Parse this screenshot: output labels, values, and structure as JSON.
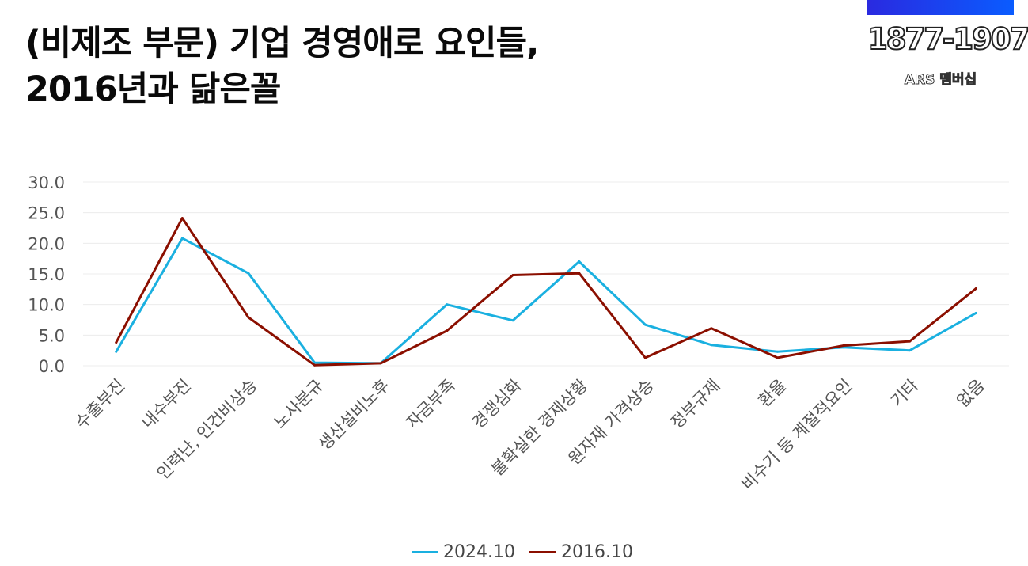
{
  "title": {
    "line1": "(비제조 부문) 기업 경영애로 요인들,",
    "line2": "2016년과 닮은꼴"
  },
  "brand": {
    "phone": "1877-1907",
    "subtitle": "ARS 멤버십"
  },
  "chart_data": {
    "type": "line",
    "categories": [
      "수출부진",
      "내수부진",
      "인력난, 인건비상승",
      "노사분규",
      "생산설비노후",
      "자금부족",
      "경쟁심화",
      "불확실한 경제상황",
      "원자재 가격상승",
      "정부규제",
      "환율",
      "비수기 등 계절적요인",
      "기타",
      "없음"
    ],
    "series": [
      {
        "name": "2024.10",
        "color": "#1ab0e0",
        "values": [
          2.3,
          20.8,
          15.1,
          0.5,
          0.4,
          10.0,
          7.4,
          17.0,
          6.7,
          3.4,
          2.3,
          3.0,
          2.5,
          8.6
        ]
      },
      {
        "name": "2016.10",
        "color": "#8b0f00",
        "values": [
          3.8,
          24.1,
          7.9,
          0.1,
          0.4,
          5.7,
          14.8,
          15.1,
          1.3,
          6.1,
          1.3,
          3.3,
          4.0,
          12.6
        ]
      }
    ],
    "ylim": [
      0,
      30
    ],
    "yticks": [
      "0.0",
      "5.0",
      "10.0",
      "15.0",
      "20.0",
      "25.0",
      "30.0"
    ],
    "grid": true,
    "legend": "bottom"
  }
}
